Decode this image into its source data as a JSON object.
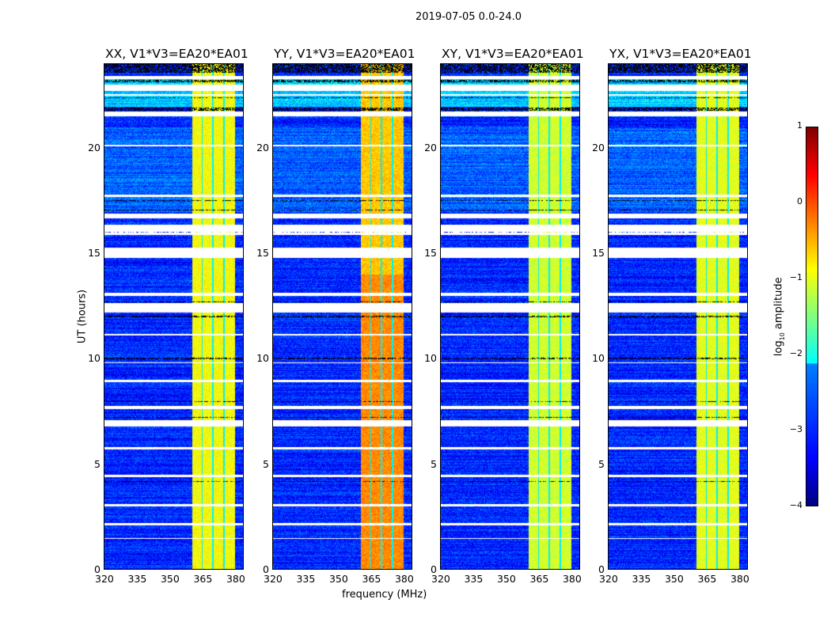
{
  "figure_title": "2019-07-05 0.0-24.0",
  "chart_data": [
    {
      "type": "heatmap",
      "title": "XX, V1*V3=EA20*EA01",
      "band_level": -0.9
    },
    {
      "type": "heatmap",
      "title": "YY, V1*V3=EA20*EA01",
      "band_level": -0.6
    },
    {
      "type": "heatmap",
      "title": "XY, V1*V3=EA20*EA01",
      "band_level": -1.1
    },
    {
      "type": "heatmap",
      "title": "YX, V1*V3=EA20*EA01",
      "band_level": -1.0
    }
  ],
  "axes": {
    "xlabel": "frequency (MHz)",
    "ylabel": "UT (hours)",
    "xlim": [
      320,
      384
    ],
    "ylim": [
      0,
      24
    ],
    "xticks": [
      "320",
      "335",
      "350",
      "365",
      "380"
    ],
    "xtick_values": [
      320,
      335,
      350,
      365,
      380
    ],
    "yticks": [
      "0",
      "5",
      "10",
      "15",
      "20"
    ],
    "ytick_values": [
      0,
      5,
      10,
      15,
      20
    ],
    "bright_band_MHz": [
      360.4,
      380
    ],
    "band_gaps_MHz": [
      365,
      370,
      375
    ],
    "flagged_hours_white": [
      [
        23.3,
        23.45
      ],
      [
        22.75,
        23.05
      ],
      [
        22.5,
        22.6
      ],
      [
        21.55,
        21.75
      ],
      [
        20.1,
        20.2
      ],
      [
        17.7,
        17.8
      ],
      [
        16.7,
        16.9
      ],
      [
        15.9,
        16.4
      ],
      [
        14.8,
        15.3
      ],
      [
        13.0,
        13.15
      ],
      [
        12.2,
        12.65
      ],
      [
        11.1,
        11.2
      ],
      [
        9.8,
        9.85
      ],
      [
        8.9,
        9.0
      ],
      [
        7.6,
        7.75
      ],
      [
        6.8,
        7.1
      ],
      [
        5.7,
        5.8
      ],
      [
        4.4,
        4.5
      ],
      [
        3.0,
        3.1
      ],
      [
        2.1,
        2.2
      ],
      [
        1.45,
        1.5
      ]
    ],
    "flagged_hours_black": [
      [
        23.6,
        24
      ],
      [
        23.15,
        23.25
      ],
      [
        22.4,
        22.45
      ],
      [
        21.8,
        21.95
      ],
      [
        17.5,
        17.55
      ],
      [
        17.05,
        17.1
      ],
      [
        16.0,
        16.05
      ],
      [
        12.7,
        12.75
      ],
      [
        12.0,
        12.05
      ],
      [
        10.0,
        10.05
      ],
      [
        7.95,
        8.0
      ],
      [
        7.2,
        7.25
      ],
      [
        4.15,
        4.2
      ]
    ]
  },
  "colorbar": {
    "label": "log10 amplitude",
    "label_base": "log",
    "label_sub": "10",
    "label_rest": " amplitude",
    "ticks": [
      "1",
      "0",
      "−1",
      "−2",
      "−3",
      "−4"
    ],
    "tick_values": [
      1,
      0,
      -1,
      -2,
      -3,
      -4
    ],
    "range": [
      -4,
      1
    ]
  }
}
